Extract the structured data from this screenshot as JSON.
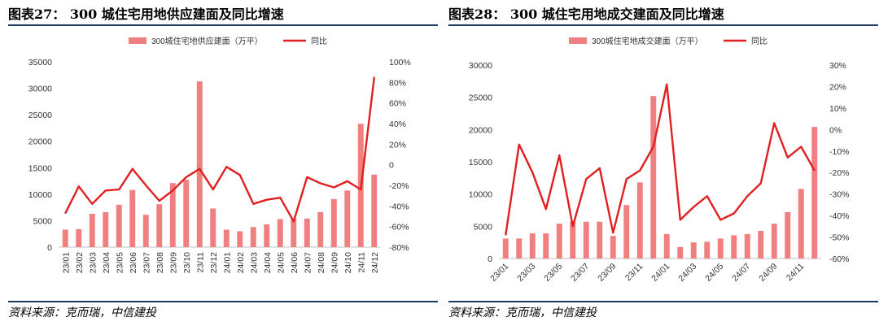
{
  "charts": [
    {
      "title": "图表27：  300 城住宅用地供应建面及同比增速",
      "source": "资料来源：克而瑞，中信建投",
      "chart_data": {
        "type": "bar+line",
        "categories": [
          "23/01",
          "23/02",
          "23/03",
          "23/04",
          "23/05",
          "23/06",
          "23/07",
          "23/08",
          "23/09",
          "23/10",
          "23/11",
          "23/12",
          "24/01",
          "24/02",
          "24/03",
          "24/04",
          "24/05",
          "24/06",
          "24/07",
          "24/08",
          "24/09",
          "24/10",
          "24/11",
          "24/12"
        ],
        "x_tick_labels": [
          "23/01",
          "23/02",
          "23/03",
          "23/04",
          "23/05",
          "23/06",
          "23/07",
          "23/08",
          "23/09",
          "23/10",
          "23/11",
          "23/12",
          "24/01",
          "24/02",
          "24/03",
          "24/04",
          "24/05",
          "24/06",
          "24/07",
          "24/08",
          "24/09",
          "24/10",
          "24/11",
          "24/12"
        ],
        "series": [
          {
            "name": "300城住宅地供应建面（万平）",
            "type": "bar",
            "axis": "left",
            "color": "#f08080",
            "values": [
              3300,
              3400,
              6300,
              6600,
              8000,
              10800,
              6100,
              8100,
              12100,
              12700,
              31300,
              7300,
              3300,
              3000,
              3800,
              4300,
              5300,
              5400,
              5400,
              6600,
              9100,
              10700,
              23300,
              13700
            ]
          },
          {
            "name": "同比",
            "type": "line",
            "axis": "right",
            "color": "#e02020",
            "values": [
              -47,
              -21,
              -38,
              -25,
              -24,
              -4,
              -20,
              -35,
              -25,
              -12,
              -4,
              -24,
              -2,
              -10,
              -38,
              -34,
              -32,
              -55,
              -12,
              -18,
              -22,
              -16,
              -24,
              85
            ]
          }
        ],
        "y_left": {
          "min": 0,
          "max": 35000,
          "ticks": [
            "0",
            "5000",
            "10000",
            "15000",
            "20000",
            "25000",
            "30000",
            "35000"
          ]
        },
        "y_right": {
          "min": -80,
          "max": 100,
          "ticks": [
            "-80%",
            "-60%",
            "-40%",
            "-20%",
            "0",
            "20%",
            "40%",
            "60%",
            "80%",
            "100%"
          ]
        }
      }
    },
    {
      "title": "图表28：  300 城住宅用地成交建面及同比增速",
      "source": "资料来源：克而瑞，中信建投",
      "chart_data": {
        "type": "bar+line",
        "categories": [
          "23/01",
          "23/02",
          "23/03",
          "23/04",
          "23/05",
          "23/06",
          "23/07",
          "23/08",
          "23/09",
          "23/10",
          "23/11",
          "23/12",
          "24/01",
          "24/02",
          "24/03",
          "24/04",
          "24/05",
          "24/06",
          "24/07",
          "24/08",
          "24/09",
          "24/10",
          "24/11",
          "24/12"
        ],
        "x_tick_labels": [
          "23/01",
          "",
          "23/03",
          "",
          "23/05",
          "",
          "23/07",
          "",
          "23/09",
          "",
          "23/11",
          "",
          "24/01",
          "",
          "24/03",
          "",
          "24/05",
          "",
          "24/07",
          "",
          "24/09",
          "",
          "24/11",
          ""
        ],
        "series": [
          {
            "name": "300城住宅地成交建面（万平）",
            "type": "bar",
            "axis": "left",
            "color": "#f08080",
            "values": [
              3100,
              3100,
              3900,
              3900,
              5400,
              5700,
              5700,
              5700,
              3500,
              8300,
              11800,
              25200,
              3800,
              1800,
              2500,
              2600,
              3100,
              3600,
              3800,
              4300,
              5400,
              7200,
              10800,
              20400
            ]
          },
          {
            "name": "同比",
            "type": "line",
            "axis": "right",
            "color": "#e02020",
            "values": [
              -49,
              -7,
              -20,
              -37,
              -12,
              -45,
              -23,
              -18,
              -48,
              -23,
              -19,
              -8,
              21,
              -42,
              -36,
              -31,
              -42,
              -39,
              -31,
              -25,
              3,
              -13,
              -8,
              -19
            ]
          }
        ],
        "y_left": {
          "min": 0,
          "max": 30000,
          "ticks": [
            "0",
            "5000",
            "10000",
            "15000",
            "20000",
            "25000",
            "30000"
          ]
        },
        "y_right": {
          "min": -60,
          "max": 30,
          "ticks": [
            "-60%",
            "-50%",
            "-40%",
            "-30%",
            "-20%",
            "-10%",
            "0%",
            "10%",
            "20%",
            "30%"
          ]
        }
      }
    }
  ]
}
